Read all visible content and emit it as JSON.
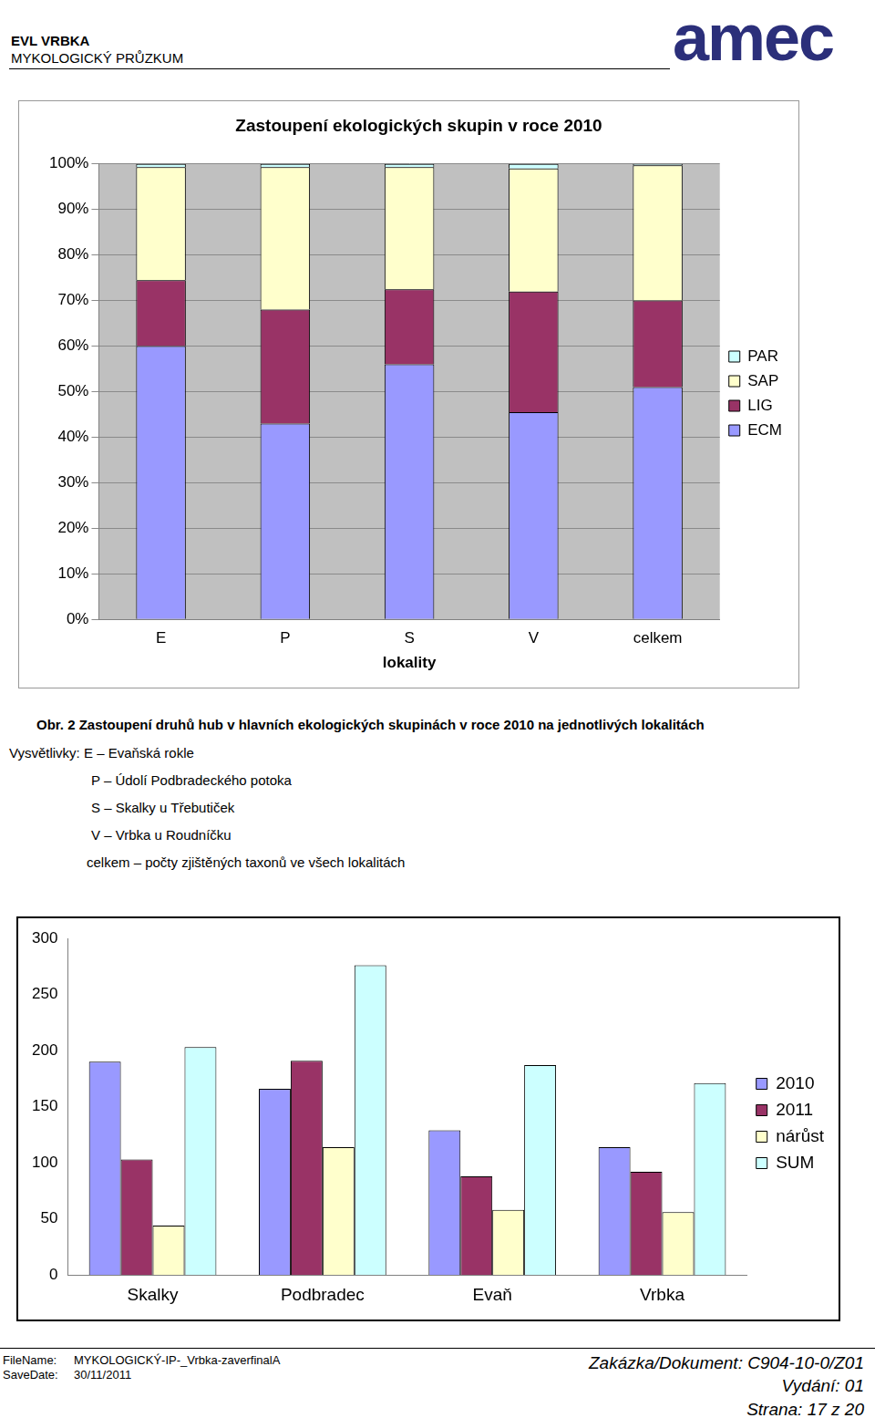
{
  "header": {
    "title": "EVL VRBKA",
    "subtitle": "MYKOLOGICKÝ PRŮZKUM",
    "logo": "amec"
  },
  "chart_data": [
    {
      "type": "bar",
      "title": "Zastoupení ekologických skupin v roce 2010",
      "x_label": "lokality",
      "categories": [
        "E",
        "P",
        "S",
        "V",
        "celkem"
      ],
      "series": [
        {
          "name": "ECM",
          "color": "#9999ff",
          "values": [
            60,
            43,
            56,
            45.5,
            51
          ]
        },
        {
          "name": "LIG",
          "color": "#993366",
          "values": [
            14.5,
            25,
            16.5,
            26.5,
            19
          ]
        },
        {
          "name": "SAP",
          "color": "#ffffcc",
          "values": [
            24.8,
            31.3,
            26.8,
            27,
            29.7
          ]
        },
        {
          "name": "PAR",
          "color": "#ccffff",
          "values": [
            0.7,
            0.7,
            0.7,
            1,
            0.3
          ]
        }
      ],
      "stacked": true,
      "grid": true,
      "legend": "right",
      "ylim": [
        0,
        100
      ],
      "yticks": [
        {
          "value": 0,
          "label": "0%"
        },
        {
          "value": 10,
          "label": "10%"
        },
        {
          "value": 20,
          "label": "20%"
        },
        {
          "value": 30,
          "label": "30%"
        },
        {
          "value": 40,
          "label": "40%"
        },
        {
          "value": 50,
          "label": "50%"
        },
        {
          "value": 60,
          "label": "60%"
        },
        {
          "value": 70,
          "label": "70%"
        },
        {
          "value": 80,
          "label": "80%"
        },
        {
          "value": 90,
          "label": "90%"
        },
        {
          "value": 100,
          "label": "100%"
        }
      ]
    },
    {
      "type": "bar",
      "categories": [
        "Skalky",
        "Podbradec",
        "Evaň",
        "Vrbka"
      ],
      "series": [
        {
          "name": "2010",
          "color": "#9999ff",
          "values": [
            190,
            166,
            129,
            114
          ]
        },
        {
          "name": "2011",
          "color": "#993366",
          "values": [
            103,
            191,
            88,
            92
          ]
        },
        {
          "name": "nárůst",
          "color": "#ffffcc",
          "values": [
            44,
            114,
            58,
            56
          ]
        },
        {
          "name": "SUM",
          "color": "#ccffff",
          "values": [
            203,
            276,
            187,
            171
          ]
        }
      ],
      "stacked": false,
      "grid": false,
      "legend": "right",
      "ylim": [
        0,
        300
      ],
      "yticks": [
        0,
        50,
        100,
        150,
        200,
        250,
        300
      ]
    }
  ],
  "caption": {
    "title": "Obr. 2 Zastoupení druhů hub v hlavních ekologických skupinách v roce 2010 na jednotlivých lokalitách",
    "legend_title": "Vysvětlivky: E – Evaňská rokle",
    "items": [
      "P – Údolí Podbradeckého potoka",
      "S – Skalky u Třebutiček",
      "V – Vrbka u Roudníčku",
      "celkem – počty zjištěných taxonů ve všech lokalitách"
    ]
  },
  "footer": {
    "file_label": "FileName:",
    "file": "MYKOLOGICKÝ-IP-_Vrbka-zaverfinalA",
    "date_label": "SaveDate:",
    "date": "30/11/2011",
    "document": "Zakázka/Dokument: C904-10-0/Z01",
    "issue": "Vydání: 01",
    "page": "Strana: 17 z 20"
  }
}
